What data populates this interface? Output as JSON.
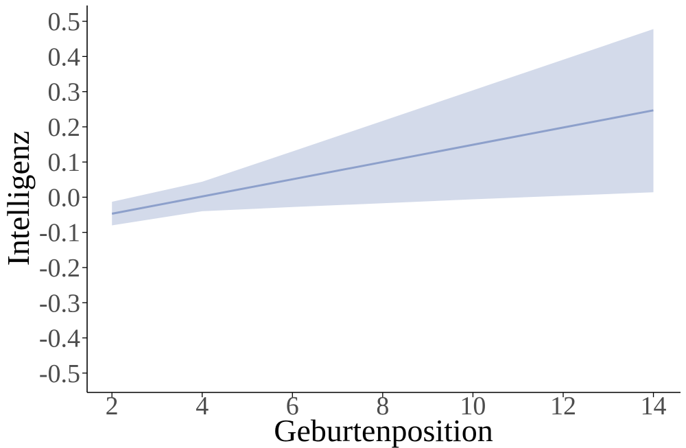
{
  "chart_data": {
    "type": "line",
    "xlabel": "Geburtenposition",
    "ylabel": "Intelligenz",
    "xlim": [
      1.45,
      14.6
    ],
    "ylim": [
      -0.555,
      0.545
    ],
    "x_ticks": [
      2,
      4,
      6,
      8,
      10,
      12,
      14
    ],
    "x_tick_labels": [
      "2",
      "4",
      "6",
      "8",
      "10",
      "12",
      "14"
    ],
    "y_ticks": [
      0.5,
      0.4,
      0.3,
      0.2,
      0.1,
      0.0,
      -0.1,
      -0.2,
      -0.3,
      -0.4,
      -0.5
    ],
    "y_tick_labels": [
      "0.5",
      "0.4",
      "0.3",
      "0.2",
      "0.1",
      "0.0",
      "-0.1",
      "-0.2",
      "-0.3",
      "-0.4",
      "-0.5"
    ],
    "grid": false,
    "legend": "none",
    "series": [
      {
        "x": [
          2,
          4,
          6,
          8,
          10,
          12,
          14
        ],
        "y": [
          -0.047,
          0.002,
          0.051,
          0.1,
          0.149,
          0.198,
          0.247
        ],
        "lower": [
          -0.08,
          -0.04,
          -0.028,
          -0.017,
          -0.006,
          0.004,
          0.014
        ],
        "upper": [
          -0.013,
          0.044,
          0.13,
          0.217,
          0.304,
          0.391,
          0.478
        ],
        "color": "#8da0cb",
        "band_color": "#d3daea"
      }
    ]
  }
}
